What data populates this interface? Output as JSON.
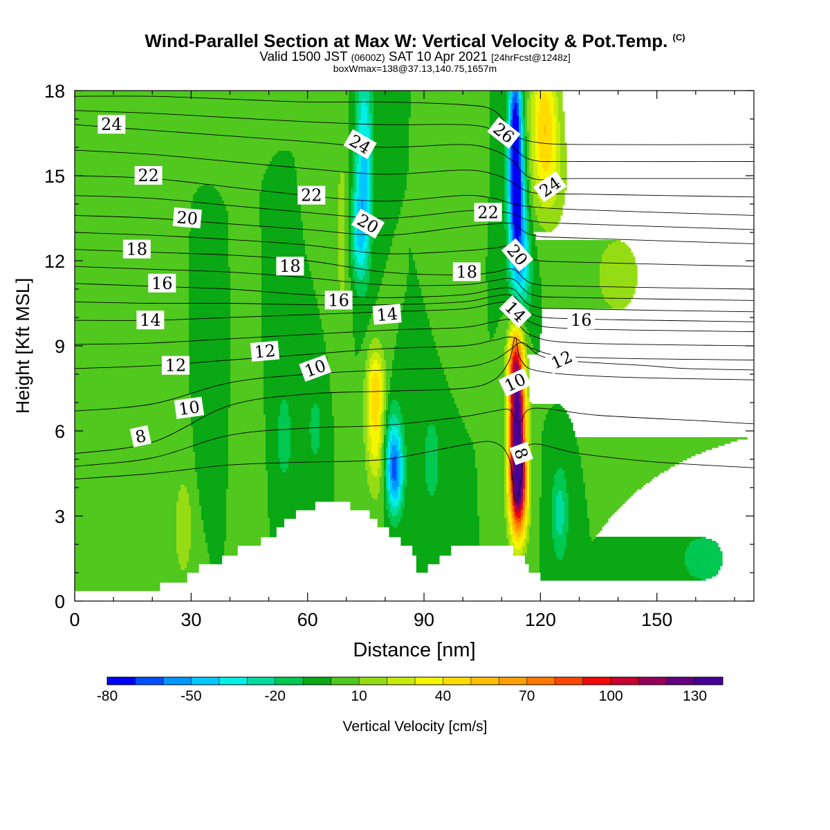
{
  "header": {
    "title": "Wind-Parallel Section at Max W: Vertical Velocity & Pot.Temp.",
    "copyright": "(C)",
    "valid_a": "Valid 1500 JST",
    "valid_utc": "(0600Z)",
    "valid_b": "SAT 10 Apr 2021",
    "forecast": "[24hrFcst@1248z]",
    "boxmax": "boxWmax=138@37.13,140.75,1657m"
  },
  "chart_data": {
    "type": "heatmap",
    "xlabel": "Distance [nm]",
    "ylabel": "Height [Kft MSL]",
    "xlim": [
      0,
      175
    ],
    "ylim": [
      0,
      18
    ],
    "xticks": [
      0,
      30,
      60,
      90,
      120,
      150
    ],
    "yticks": [
      0,
      3,
      6,
      9,
      12,
      15,
      18
    ],
    "colorbar": {
      "label": "Vertical Velocity [cm/s]",
      "min": -80,
      "max": 140,
      "step": 10,
      "tick_labels": [
        -80,
        -50,
        -20,
        10,
        40,
        70,
        100,
        130
      ],
      "colors": [
        "#0000f5",
        "#0050ff",
        "#0096ff",
        "#00c8ff",
        "#00f0e6",
        "#00dca0",
        "#00c850",
        "#0aa814",
        "#50c81e",
        "#96dc14",
        "#c8eb0a",
        "#f5f500",
        "#ffdc00",
        "#ffbe00",
        "#ffa000",
        "#ff7800",
        "#ff4600",
        "#f00a0a",
        "#c80032",
        "#96005a",
        "#640082",
        "#460096"
      ]
    },
    "background_value": 0,
    "terrain_kft": [
      [
        0,
        0.35
      ],
      [
        5,
        0.35
      ],
      [
        10,
        0.35
      ],
      [
        15,
        0.35
      ],
      [
        20,
        0.35
      ],
      [
        22,
        0.35
      ],
      [
        22,
        0.65
      ],
      [
        29,
        0.65
      ],
      [
        29,
        1.0
      ],
      [
        32,
        1.0
      ],
      [
        32,
        1.3
      ],
      [
        38,
        1.3
      ],
      [
        38,
        1.6
      ],
      [
        42,
        1.6
      ],
      [
        42,
        1.95
      ],
      [
        48,
        1.95
      ],
      [
        48,
        2.25
      ],
      [
        52,
        2.25
      ],
      [
        52,
        2.6
      ],
      [
        54,
        2.6
      ],
      [
        54,
        2.9
      ],
      [
        57,
        2.9
      ],
      [
        57,
        3.2
      ],
      [
        62,
        3.2
      ],
      [
        62,
        3.5
      ],
      [
        71,
        3.5
      ],
      [
        71,
        3.2
      ],
      [
        76,
        3.2
      ],
      [
        76,
        2.9
      ],
      [
        78,
        2.9
      ],
      [
        78,
        2.6
      ],
      [
        81,
        2.6
      ],
      [
        81,
        2.25
      ],
      [
        84,
        2.25
      ],
      [
        84,
        1.95
      ],
      [
        87,
        1.95
      ],
      [
        87,
        1.6
      ],
      [
        88,
        1.6
      ],
      [
        88,
        1.3
      ],
      [
        88,
        1.0
      ],
      [
        91,
        1.0
      ],
      [
        91,
        1.3
      ],
      [
        94,
        1.3
      ],
      [
        94,
        1.6
      ],
      [
        97,
        1.6
      ],
      [
        97,
        1.95
      ],
      [
        113,
        1.95
      ],
      [
        113,
        1.6
      ],
      [
        116,
        1.6
      ],
      [
        116,
        1.3
      ],
      [
        117,
        1.3
      ],
      [
        117,
        1.0
      ],
      [
        120,
        1.0
      ],
      [
        120,
        0.65
      ],
      [
        123,
        0.65
      ],
      [
        123,
        0.35
      ],
      [
        130,
        0.35
      ],
      [
        175,
        0.35
      ]
    ],
    "w_features": [
      {
        "x": 114,
        "y": 5.8,
        "sx": 1.5,
        "sy": 2.0,
        "value": 138
      },
      {
        "x": 113.5,
        "y": 8.3,
        "sx": 1.3,
        "sy": 1.0,
        "value": 55
      },
      {
        "x": 114.5,
        "y": 3.8,
        "sx": 1.6,
        "sy": 1.1,
        "value": 60
      },
      {
        "x": 113.5,
        "y": 16.5,
        "sx": 1.2,
        "sy": 1.8,
        "value": -80
      },
      {
        "x": 114,
        "y": 13.7,
        "sx": 1.5,
        "sy": 1.6,
        "value": -58
      },
      {
        "x": 115,
        "y": 11.6,
        "sx": 2.0,
        "sy": 1.3,
        "value": -30
      },
      {
        "x": 121,
        "y": 17.2,
        "sx": 2.6,
        "sy": 1.6,
        "value": 42
      },
      {
        "x": 122,
        "y": 15.0,
        "sx": 3.2,
        "sy": 1.4,
        "value": 22
      },
      {
        "x": 77.5,
        "y": 6.2,
        "sx": 1.8,
        "sy": 1.6,
        "value": 40
      },
      {
        "x": 77.5,
        "y": 7.8,
        "sx": 1.6,
        "sy": 0.8,
        "value": 22
      },
      {
        "x": 82.5,
        "y": 4.4,
        "sx": 1.5,
        "sy": 1.0,
        "value": -50
      },
      {
        "x": 82,
        "y": 5.6,
        "sx": 1.8,
        "sy": 1.1,
        "value": -25
      },
      {
        "x": 74.5,
        "y": 15.6,
        "sx": 1.6,
        "sy": 2.6,
        "value": -42
      },
      {
        "x": 73,
        "y": 13.0,
        "sx": 1.6,
        "sy": 1.2,
        "value": -30
      },
      {
        "x": 69,
        "y": 13.0,
        "sx": 1.5,
        "sy": 2.5,
        "value": 15
      },
      {
        "x": 28,
        "y": 2.6,
        "sx": 1.8,
        "sy": 1.4,
        "value": 18
      },
      {
        "x": 54,
        "y": 5.8,
        "sx": 1.5,
        "sy": 1.2,
        "value": -18
      },
      {
        "x": 62,
        "y": 6.1,
        "sx": 1.5,
        "sy": 1.0,
        "value": -15
      },
      {
        "x": 92,
        "y": 5.0,
        "sx": 2.0,
        "sy": 1.4,
        "value": -15
      },
      {
        "x": 125,
        "y": 3.1,
        "sx": 1.6,
        "sy": 1.2,
        "value": -25
      },
      {
        "x": 162,
        "y": 1.5,
        "sx": 6,
        "sy": 0.9,
        "value": -14
      },
      {
        "x": 140,
        "y": 11.5,
        "sx": 8,
        "sy": 2.0,
        "value": 12
      },
      {
        "x": 8,
        "y": 8.0,
        "sx": 1.8,
        "sy": 1.6,
        "value": 10
      },
      {
        "x": 45,
        "y": 4.0,
        "sx": 1.5,
        "sy": 1.3,
        "value": 10
      },
      {
        "x": 34,
        "y": 5.5,
        "sx": 1.5,
        "sy": 1.1,
        "value": -10
      },
      {
        "x": 97,
        "y": 11.0,
        "sx": 1.8,
        "sy": 1.3,
        "value": 8
      }
    ],
    "theta_contours": [
      {
        "label": "8",
        "pts": [
          [
            0,
            4.3
          ],
          [
            20,
            4.5
          ],
          [
            40,
            4.8
          ],
          [
            60,
            4.9
          ],
          [
            80,
            5.0
          ],
          [
            100,
            5.5
          ],
          [
            108,
            5.6
          ],
          [
            112,
            5.0
          ],
          [
            113.5,
            3.5
          ],
          [
            115,
            4.2
          ],
          [
            117,
            5.5
          ],
          [
            130,
            5.2
          ],
          [
            150,
            4.9
          ],
          [
            175,
            4.7
          ]
        ]
      },
      {
        "label": "10",
        "pts": [
          [
            0,
            5.2
          ],
          [
            20,
            5.6
          ],
          [
            40,
            6.9
          ],
          [
            60,
            7.3
          ],
          [
            80,
            7.4
          ],
          [
            100,
            7.5
          ],
          [
            108,
            7.8
          ],
          [
            112,
            8.5
          ],
          [
            113.5,
            9.3
          ],
          [
            115,
            8.5
          ],
          [
            120,
            8.1
          ],
          [
            140,
            7.9
          ],
          [
            175,
            7.8
          ]
        ]
      },
      {
        "label": "12",
        "pts": [
          [
            0,
            8.2
          ],
          [
            20,
            8.3
          ],
          [
            40,
            8.5
          ],
          [
            60,
            8.7
          ],
          [
            80,
            8.9
          ],
          [
            100,
            9.0
          ],
          [
            108,
            9.2
          ],
          [
            113,
            9.3
          ],
          [
            118,
            8.9
          ],
          [
            130,
            8.6
          ],
          [
            175,
            8.5
          ]
        ]
      },
      {
        "label": "14",
        "pts": [
          [
            0,
            9.9
          ],
          [
            20,
            9.9
          ],
          [
            40,
            10.0
          ],
          [
            60,
            10.1
          ],
          [
            80,
            10.2
          ],
          [
            100,
            10.3
          ],
          [
            108,
            10.5
          ],
          [
            113,
            10.5
          ],
          [
            118,
            9.8
          ],
          [
            130,
            9.6
          ],
          [
            175,
            9.5
          ]
        ]
      },
      {
        "label": "16",
        "pts": [
          [
            0,
            11.2
          ],
          [
            20,
            11.1
          ],
          [
            40,
            11.0
          ],
          [
            60,
            10.8
          ],
          [
            80,
            10.7
          ],
          [
            100,
            10.8
          ],
          [
            108,
            11.0
          ],
          [
            113,
            11.0
          ],
          [
            118,
            10.4
          ],
          [
            130,
            10.3
          ],
          [
            175,
            10.2
          ]
        ]
      },
      {
        "label": "18",
        "pts": [
          [
            0,
            12.4
          ],
          [
            20,
            12.3
          ],
          [
            40,
            12.2
          ],
          [
            60,
            12.0
          ],
          [
            80,
            11.6
          ],
          [
            100,
            11.5
          ],
          [
            108,
            11.6
          ],
          [
            113,
            11.7
          ],
          [
            118,
            11.2
          ],
          [
            130,
            11.1
          ],
          [
            175,
            11.0
          ]
        ]
      },
      {
        "label": "20",
        "pts": [
          [
            0,
            13.6
          ],
          [
            20,
            13.5
          ],
          [
            40,
            13.3
          ],
          [
            60,
            13.1
          ],
          [
            80,
            12.9
          ],
          [
            100,
            13.2
          ],
          [
            108,
            13.3
          ],
          [
            113,
            13.3
          ],
          [
            118,
            12.9
          ],
          [
            130,
            12.8
          ],
          [
            175,
            12.6
          ]
        ]
      },
      {
        "label": "22",
        "pts": [
          [
            0,
            15.0
          ],
          [
            20,
            14.9
          ],
          [
            40,
            14.6
          ],
          [
            60,
            14.3
          ],
          [
            80,
            14.1
          ],
          [
            100,
            14.3
          ],
          [
            108,
            14.2
          ],
          [
            113,
            14.0
          ],
          [
            118,
            13.9
          ],
          [
            130,
            13.8
          ],
          [
            175,
            13.6
          ]
        ]
      },
      {
        "label": "24",
        "pts": [
          [
            0,
            16.8
          ],
          [
            20,
            16.6
          ],
          [
            40,
            16.4
          ],
          [
            60,
            16.2
          ],
          [
            80,
            16.0
          ],
          [
            100,
            16.1
          ],
          [
            108,
            15.9
          ],
          [
            113,
            15.5
          ],
          [
            118,
            14.9
          ],
          [
            130,
            14.9
          ],
          [
            175,
            14.9
          ]
        ]
      },
      {
        "label": "26",
        "pts": [
          [
            0,
            17.8
          ],
          [
            20,
            17.8
          ],
          [
            40,
            17.7
          ],
          [
            60,
            17.6
          ],
          [
            80,
            17.6
          ],
          [
            100,
            17.5
          ],
          [
            108,
            17.3
          ],
          [
            113,
            16.5
          ],
          [
            118,
            16.2
          ],
          [
            130,
            16.1
          ],
          [
            175,
            16.1
          ]
        ]
      }
    ],
    "contour_labels": [
      {
        "text": "24",
        "x": 9.5,
        "y": 16.8,
        "angle": 0
      },
      {
        "text": "22",
        "x": 19,
        "y": 15.0,
        "angle": 0
      },
      {
        "text": "20",
        "x": 29,
        "y": 13.5,
        "angle": 5
      },
      {
        "text": "18",
        "x": 16,
        "y": 12.4,
        "angle": 0
      },
      {
        "text": "16",
        "x": 22.5,
        "y": 11.2,
        "angle": 0
      },
      {
        "text": "14",
        "x": 19.5,
        "y": 9.9,
        "angle": 0
      },
      {
        "text": "12",
        "x": 26,
        "y": 8.3,
        "angle": 0
      },
      {
        "text": "10",
        "x": 29.5,
        "y": 6.8,
        "angle": -8
      },
      {
        "text": "8",
        "x": 17,
        "y": 5.8,
        "angle": -12
      },
      {
        "text": "24",
        "x": 73.5,
        "y": 16.1,
        "angle": 30
      },
      {
        "text": "22",
        "x": 61,
        "y": 14.3,
        "angle": 0
      },
      {
        "text": "20",
        "x": 75.5,
        "y": 13.3,
        "angle": 30
      },
      {
        "text": "18",
        "x": 55.5,
        "y": 11.8,
        "angle": 0
      },
      {
        "text": "16",
        "x": 68,
        "y": 10.6,
        "angle": 0
      },
      {
        "text": "14",
        "x": 80.5,
        "y": 10.1,
        "angle": -5
      },
      {
        "text": "12",
        "x": 49,
        "y": 8.8,
        "angle": -5
      },
      {
        "text": "10",
        "x": 62,
        "y": 8.2,
        "angle": -20
      },
      {
        "text": "26",
        "x": 110.5,
        "y": 16.5,
        "angle": 38
      },
      {
        "text": "22",
        "x": 106.5,
        "y": 13.7,
        "angle": 0
      },
      {
        "text": "24",
        "x": 122.5,
        "y": 14.6,
        "angle": -35
      },
      {
        "text": "20",
        "x": 114,
        "y": 12.2,
        "angle": 50
      },
      {
        "text": "18",
        "x": 101,
        "y": 11.6,
        "angle": 0
      },
      {
        "text": "14",
        "x": 113.5,
        "y": 10.2,
        "angle": 45
      },
      {
        "text": "16",
        "x": 130.5,
        "y": 9.9,
        "angle": 0
      },
      {
        "text": "12",
        "x": 125.5,
        "y": 8.5,
        "angle": -25
      },
      {
        "text": "10",
        "x": 113.5,
        "y": 7.7,
        "angle": -25
      },
      {
        "text": "8",
        "x": 115,
        "y": 5.2,
        "angle": 70
      }
    ]
  }
}
